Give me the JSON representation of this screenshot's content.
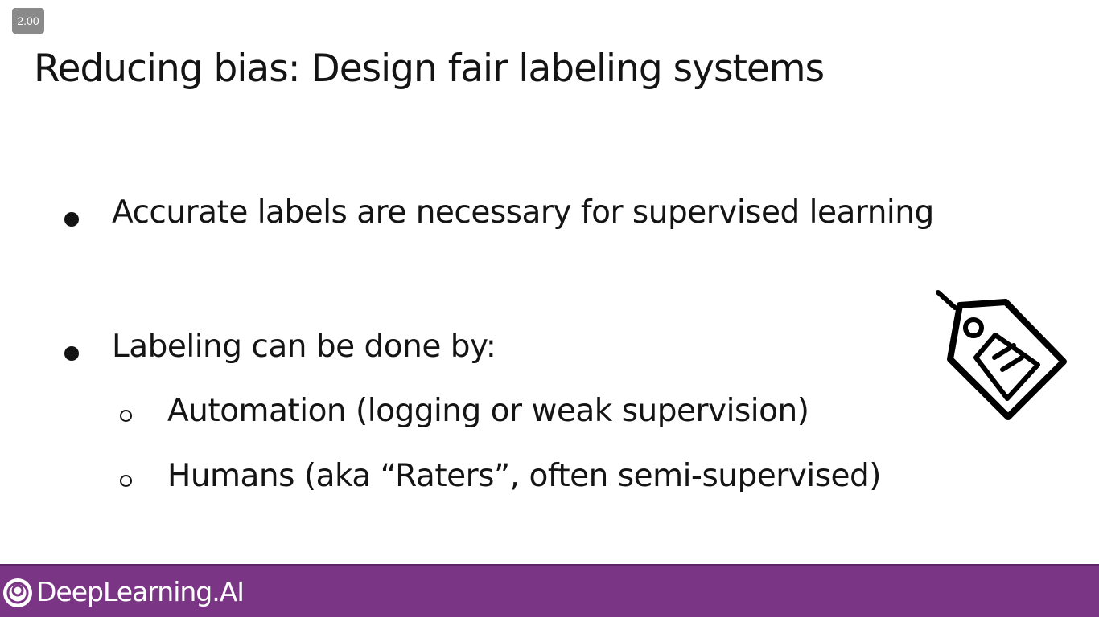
{
  "player": {
    "speed_label": "2.00"
  },
  "slide": {
    "title": "Reducing bias: Design fair labeling systems",
    "bullets": [
      {
        "level": 1,
        "text": "Accurate labels are necessary for supervised learning"
      },
      {
        "level": 1,
        "text": "Labeling can be done by:"
      },
      {
        "level": 2,
        "text": "Automation (logging or weak supervision)"
      },
      {
        "level": 2,
        "text": "Humans (aka “Raters”, often semi-supervised)"
      }
    ],
    "illustration_icon": "price-tag-icon"
  },
  "footer": {
    "brand_name": "DeepLearning.AI",
    "brand_icon": "deeplearning-ai-logo-icon",
    "background_color": "#7b3585"
  }
}
